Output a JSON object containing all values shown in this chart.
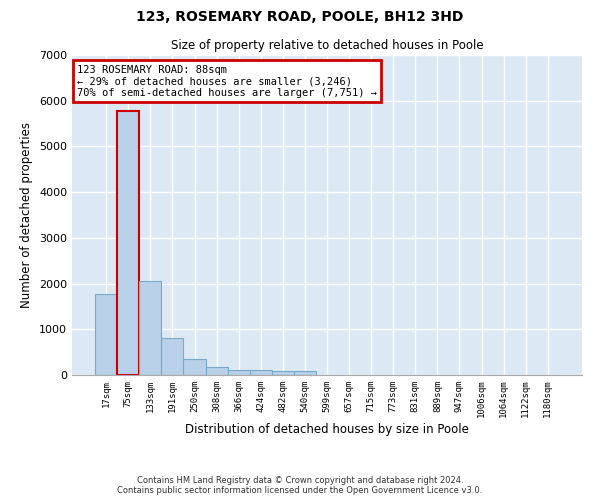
{
  "title": "123, ROSEMARY ROAD, POOLE, BH12 3HD",
  "subtitle": "Size of property relative to detached houses in Poole",
  "xlabel": "Distribution of detached houses by size in Poole",
  "ylabel": "Number of detached properties",
  "categories": [
    "17sqm",
    "75sqm",
    "133sqm",
    "191sqm",
    "250sqm",
    "308sqm",
    "366sqm",
    "424sqm",
    "482sqm",
    "540sqm",
    "599sqm",
    "657sqm",
    "715sqm",
    "773sqm",
    "831sqm",
    "889sqm",
    "947sqm",
    "1006sqm",
    "1064sqm",
    "1122sqm",
    "1180sqm"
  ],
  "values": [
    1780,
    5780,
    2060,
    820,
    340,
    185,
    110,
    100,
    95,
    85,
    0,
    0,
    0,
    0,
    0,
    0,
    0,
    0,
    0,
    0,
    0
  ],
  "bar_color": "#b8d0e8",
  "bar_edge_color": "#7aaac8",
  "highlight_bar_index": 1,
  "highlight_color": "#cc0000",
  "annotation_text": "123 ROSEMARY ROAD: 88sqm\n← 29% of detached houses are smaller (3,246)\n70% of semi-detached houses are larger (7,751) →",
  "annotation_box_color": "#ffffff",
  "annotation_box_edge_color": "#cc0000",
  "ylim": [
    0,
    7000
  ],
  "yticks": [
    0,
    1000,
    2000,
    3000,
    4000,
    5000,
    6000,
    7000
  ],
  "background_color": "#dce9f5",
  "grid_color": "#ffffff",
  "footer_line1": "Contains HM Land Registry data © Crown copyright and database right 2024.",
  "footer_line2": "Contains public sector information licensed under the Open Government Licence v3.0."
}
